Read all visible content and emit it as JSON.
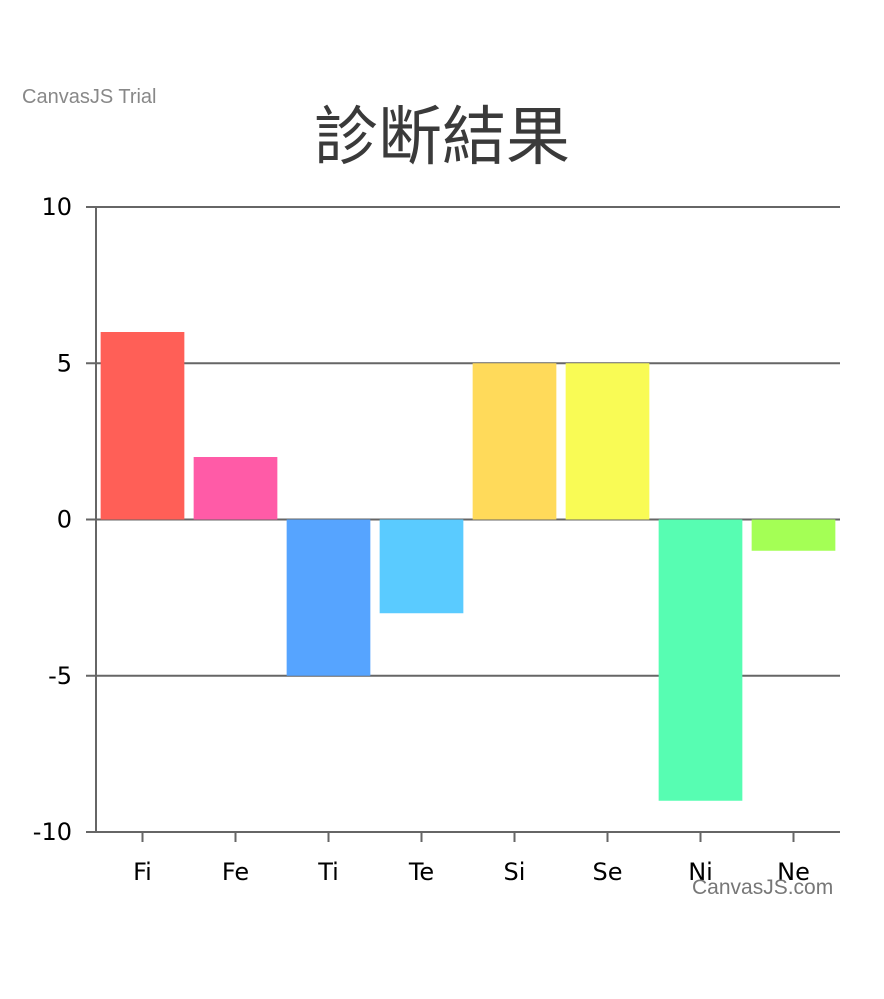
{
  "watermark": {
    "trial": "CanvasJS Trial",
    "credit": "CanvasJS.com"
  },
  "chart_data": {
    "type": "bar",
    "title": "診断結果",
    "categories": [
      "Fi",
      "Fe",
      "Ti",
      "Te",
      "Si",
      "Se",
      "Ni",
      "Ne"
    ],
    "values": [
      6,
      2,
      -5,
      -3,
      5,
      5,
      -9,
      -1
    ],
    "colors": [
      "#FF5F57",
      "#FF5BA7",
      "#56A4FF",
      "#5ACBFF",
      "#FFDA5A",
      "#F9FB55",
      "#57FDB2",
      "#A4FF55"
    ],
    "ylim": [
      -10,
      10
    ],
    "yticks": [
      10,
      5,
      0,
      -5,
      -10
    ],
    "xlabel": "",
    "ylabel": "",
    "grid": true,
    "legend": "none"
  }
}
